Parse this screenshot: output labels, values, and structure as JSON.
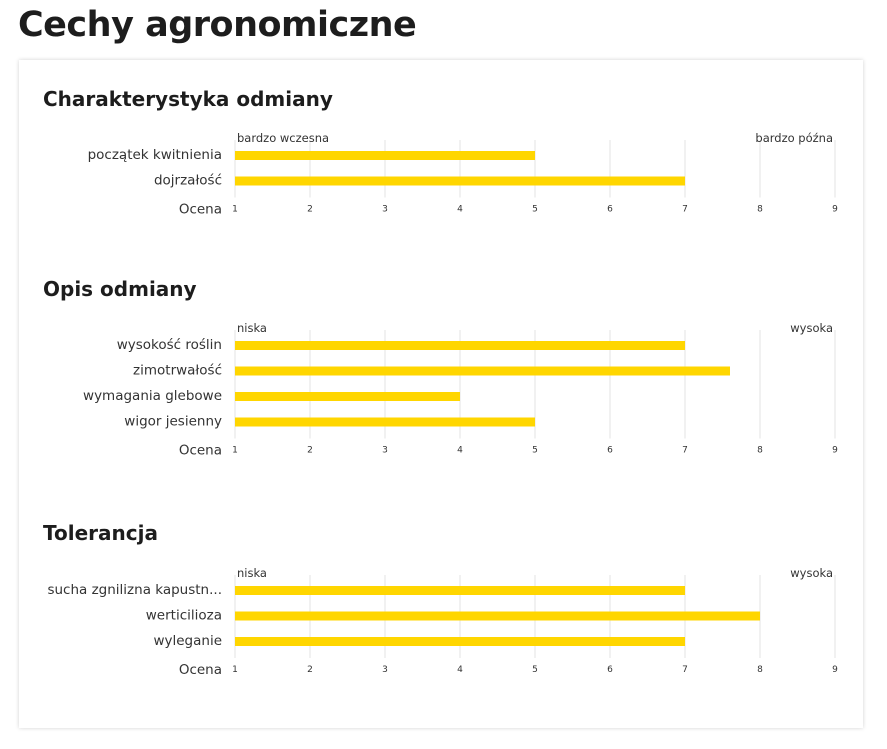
{
  "page": {
    "title": "Cechy agronomiczne"
  },
  "colors": {
    "bar": "#ffd600",
    "grid": "#e3e3e3"
  },
  "chart_data": [
    {
      "type": "bar",
      "orientation": "horizontal",
      "title": "Charakterystyka odmiany",
      "categories": [
        "początek kwitnienia",
        "dojrzałość"
      ],
      "values": [
        5,
        7
      ],
      "scale_min_label": "bardzo wczesna",
      "scale_max_label": "bardzo późna",
      "xlabel": "Ocena",
      "xlim": [
        1,
        9
      ],
      "ticks": [
        1,
        2,
        3,
        4,
        5,
        6,
        7,
        8,
        9
      ],
      "grid": true
    },
    {
      "type": "bar",
      "orientation": "horizontal",
      "title": "Opis odmiany",
      "categories": [
        "wysokość roślin",
        "zimotrwałość",
        "wymagania glebowe",
        "wigor jesienny"
      ],
      "values": [
        7,
        7.6,
        4,
        5
      ],
      "scale_min_label": "niska",
      "scale_max_label": "wysoka",
      "xlabel": "Ocena",
      "xlim": [
        1,
        9
      ],
      "ticks": [
        1,
        2,
        3,
        4,
        5,
        6,
        7,
        8,
        9
      ],
      "grid": true
    },
    {
      "type": "bar",
      "orientation": "horizontal",
      "title": "Tolerancja",
      "categories": [
        "sucha zgnilizna kapustn...",
        "werticilioza",
        "wyleganie"
      ],
      "values": [
        7,
        8,
        7
      ],
      "scale_min_label": "niska",
      "scale_max_label": "wysoka",
      "xlabel": "Ocena",
      "xlim": [
        1,
        9
      ],
      "ticks": [
        1,
        2,
        3,
        4,
        5,
        6,
        7,
        8,
        9
      ],
      "grid": true
    }
  ]
}
